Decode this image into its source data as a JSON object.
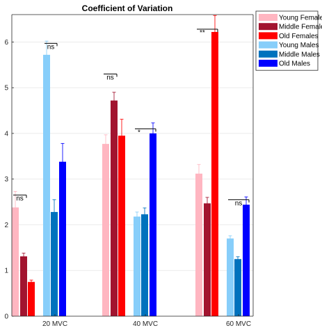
{
  "chart_data": {
    "type": "bar",
    "title": "Coefficient of Variation",
    "xlabel": "",
    "ylabel": "",
    "ylim": [
      0,
      6.6
    ],
    "yticks": [
      0,
      1,
      2,
      3,
      4,
      5,
      6
    ],
    "grid": true,
    "legend_position": "top-right outside",
    "groups": [
      {
        "label": "20 MVC",
        "bars": [
          {
            "series": "Young Females",
            "value": 2.38,
            "err": 0.35
          },
          {
            "series": "Middle Females",
            "value": 1.31,
            "err": 0.07
          },
          {
            "series": "Old Females",
            "value": 0.75,
            "err": 0.04
          },
          {
            "series": "Young Males",
            "value": 5.72,
            "err": 0.3
          },
          {
            "series": "Middle Males",
            "value": 2.28,
            "err": 0.27
          },
          {
            "series": "Old Males",
            "value": 3.38,
            "err": 0.4
          }
        ]
      },
      {
        "label": "40 MVC",
        "bars": [
          {
            "series": "Young Females",
            "value": 3.77,
            "err": 0.2
          },
          {
            "series": "Middle Females",
            "value": 4.72,
            "err": 0.18
          },
          {
            "series": "Old Females",
            "value": 3.95,
            "err": 0.36
          },
          {
            "series": "Young Males",
            "value": 2.18,
            "err": 0.1
          },
          {
            "series": "Middle Males",
            "value": 2.23,
            "err": 0.14
          },
          {
            "series": "Old Males",
            "value": 4.0,
            "err": 0.23
          }
        ]
      },
      {
        "label": "60 MVC",
        "bars": [
          {
            "series": "Young Females",
            "value": 3.12,
            "err": 0.2
          },
          {
            "series": "Middle Females",
            "value": 2.47,
            "err": 0.13
          },
          {
            "series": "Old Females",
            "value": 6.22,
            "err": 0.36
          },
          {
            "series": "Young Males",
            "value": 1.7,
            "err": 0.06
          },
          {
            "series": "Middle Males",
            "value": 1.25,
            "err": 0.05
          },
          {
            "series": "Old Males",
            "value": 2.44,
            "err": 0.17
          }
        ]
      }
    ],
    "series": [
      {
        "name": "Young Females",
        "color": "#ffb6c1"
      },
      {
        "name": "Middle Females",
        "color": "#a2142f"
      },
      {
        "name": "Old Females",
        "color": "#ff0000"
      },
      {
        "name": "Young Males",
        "color": "#87cefa"
      },
      {
        "name": "Middle Males",
        "color": "#0072bd"
      },
      {
        "name": "Old Males",
        "color": "#0000ff"
      }
    ],
    "annotations": [
      {
        "group": 0,
        "from": 0,
        "to": 1,
        "y": 2.65,
        "text": "ns"
      },
      {
        "group": 0,
        "from": 3,
        "to": 4,
        "y": 5.97,
        "text": "ns"
      },
      {
        "group": 1,
        "from": 0,
        "to": 1,
        "y": 5.3,
        "text": "ns"
      },
      {
        "group": 1,
        "from": 3,
        "to": 5,
        "y": 4.1,
        "text": "*"
      },
      {
        "group": 2,
        "from": 0,
        "to": 2,
        "y": 6.28,
        "text": "**"
      },
      {
        "group": 2,
        "from": 3,
        "to": 5,
        "y": 2.55,
        "text": "ns"
      }
    ]
  }
}
